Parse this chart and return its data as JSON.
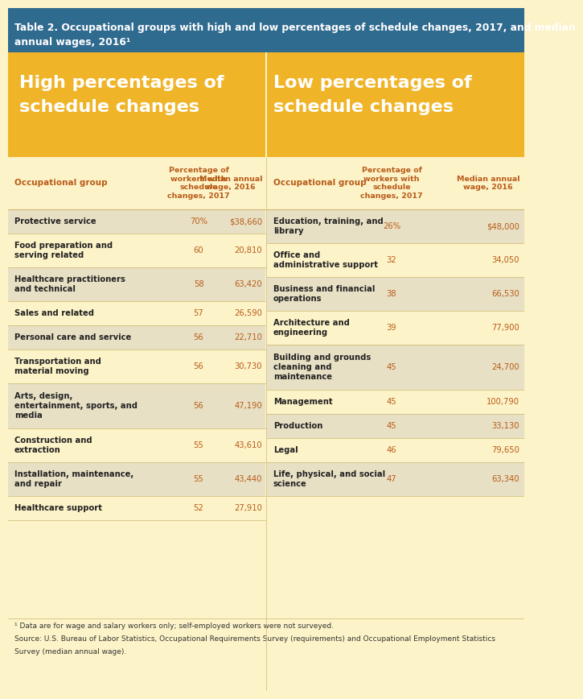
{
  "title_line1": "Table 2. Occupational groups with high and low percentages of schedule changes, 2017, and median",
  "title_line2": "annual wages, 2016¹",
  "title_bg": "#2f6a8f",
  "title_color": "#ffffff",
  "main_bg": "#fdf3c8",
  "section_bg": "#f0b429",
  "header_color": "#b85c1a",
  "row_label_color": "#222222",
  "row_data_color": "#b85c1a",
  "row_bg_alt": "#e8e0c4",
  "row_bg_plain": "#fdf3c8",
  "high_title_line1": "High percentages of",
  "high_title_line2": "schedule changes",
  "low_title_line1": "Low percentages of",
  "low_title_line2": "schedule changes",
  "col_header1": "Percentage of\nworkers with\nschedule\nchanges, 2017",
  "col_header2": "Median annual\nwage, 2016",
  "left_col_header": "Occupational group",
  "right_col_header": "Occupational group",
  "high_rows": [
    {
      "group": "Protective service",
      "pct": "70%",
      "wage": "$38,660",
      "lines": 1
    },
    {
      "group": "Food preparation and\nserving related",
      "pct": "60",
      "wage": "20,810",
      "lines": 2
    },
    {
      "group": "Healthcare practitioners\nand technical",
      "pct": "58",
      "wage": "63,420",
      "lines": 2
    },
    {
      "group": "Sales and related",
      "pct": "57",
      "wage": "26,590",
      "lines": 1
    },
    {
      "group": "Personal care and service",
      "pct": "56",
      "wage": "22,710",
      "lines": 1
    },
    {
      "group": "Transportation and\nmaterial moving",
      "pct": "56",
      "wage": "30,730",
      "lines": 2
    },
    {
      "group": "Arts, design,\nentertainment, sports, and\nmedia",
      "pct": "56",
      "wage": "47,190",
      "lines": 3
    },
    {
      "group": "Construction and\nextraction",
      "pct": "55",
      "wage": "43,610",
      "lines": 2
    },
    {
      "group": "Installation, maintenance,\nand repair",
      "pct": "55",
      "wage": "43,440",
      "lines": 2
    },
    {
      "group": "Healthcare support",
      "pct": "52",
      "wage": "27,910",
      "lines": 1
    }
  ],
  "low_rows": [
    {
      "group": "Education, training, and\nlibrary",
      "pct": "26%",
      "wage": "$48,000",
      "lines": 2
    },
    {
      "group": "Office and\nadministrative support",
      "pct": "32",
      "wage": "34,050",
      "lines": 2
    },
    {
      "group": "Business and financial\noperations",
      "pct": "38",
      "wage": "66,530",
      "lines": 2
    },
    {
      "group": "Architecture and\nengineering",
      "pct": "39",
      "wage": "77,900",
      "lines": 2
    },
    {
      "group": "Building and grounds\ncleaning and\nmaintenance",
      "pct": "45",
      "wage": "24,700",
      "lines": 3
    },
    {
      "group": "Management",
      "pct": "45",
      "wage": "100,790",
      "lines": 1
    },
    {
      "group": "Production",
      "pct": "45",
      "wage": "33,130",
      "lines": 1
    },
    {
      "group": "Legal",
      "pct": "46",
      "wage": "79,650",
      "lines": 1
    },
    {
      "group": "Life, physical, and social\nscience",
      "pct": "47",
      "wage": "63,340",
      "lines": 2
    }
  ],
  "footnote_line1": "¹ Data are for wage and salary workers only; self-employed workers were not surveyed.",
  "footnote_line2": "Source: U.S. Bureau of Labor Statistics, Occupational Requirements Survey (requirements) and Occupational Employment Statistics",
  "footnote_line3": "Survey (median annual wage).",
  "footnote_color": "#333333",
  "divider_color": "#ccb870"
}
